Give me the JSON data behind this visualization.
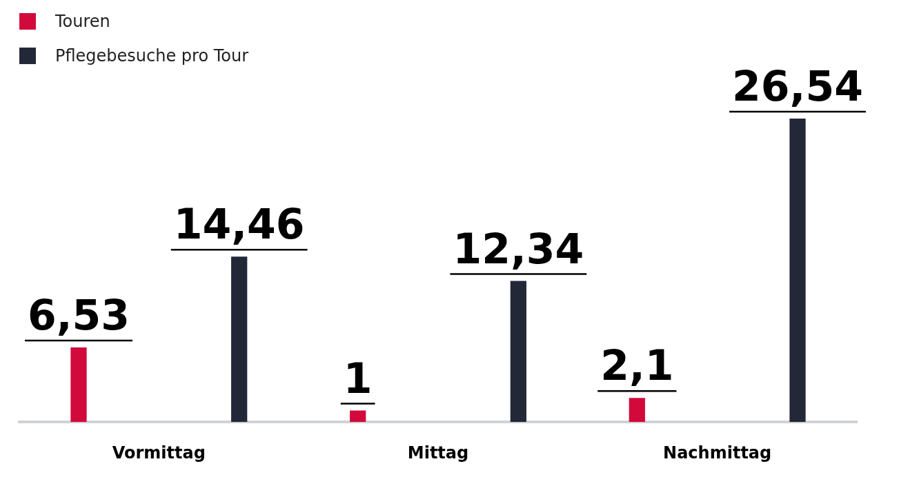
{
  "chart_data": {
    "type": "bar",
    "categories": [
      "Vormittag",
      "Mittag",
      "Nachmittag"
    ],
    "series": [
      {
        "name": "Touren",
        "color": "#d20a3c",
        "values": [
          6.53,
          1,
          2.1
        ],
        "value_labels": [
          "6,53",
          "1",
          "2,1"
        ]
      },
      {
        "name": "Pflegebesuche pro Tour",
        "color": "#222838",
        "values": [
          14.46,
          12.34,
          26.54
        ],
        "value_labels": [
          "14,46",
          "12,34",
          "26,54"
        ]
      }
    ],
    "legend": "top left",
    "grid": false
  }
}
